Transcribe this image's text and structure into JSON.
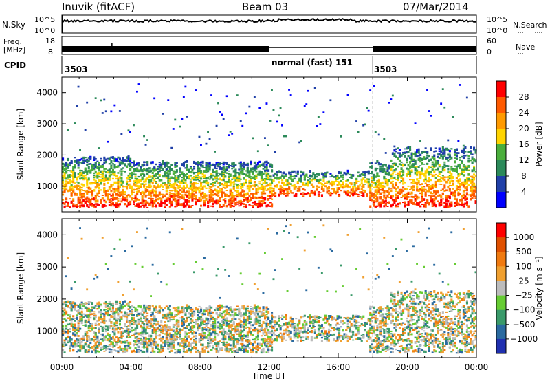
{
  "header": {
    "station": "Inuvik (fitACF)",
    "beam": "Beam 03",
    "date": "07/Mar/2014"
  },
  "left_labels": {
    "nsky": "N.Sky",
    "nsky_top": "10^5",
    "nsky_bottom": "10^0",
    "freq_line1": "Freq.",
    "freq_line2": "[MHz]",
    "freq_top": "18",
    "freq_bottom": "8",
    "cpid": "CPID"
  },
  "right_labels": {
    "nsearch": "N.Search",
    "nsearch_top": "10^5",
    "nsearch_bottom": "10^0",
    "nave": "Nave",
    "nave_top": "60",
    "nave_bottom": "0"
  },
  "cpid_segments": [
    {
      "start_hour": 0,
      "end_hour": 12,
      "label": "3503"
    },
    {
      "start_hour": 12,
      "end_hour": 18,
      "label": "normal (fast) 151"
    },
    {
      "start_hour": 18,
      "end_hour": 24,
      "label": "3503"
    }
  ],
  "colors": {
    "power_scale": [
      "#0000ff",
      "#2040a8",
      "#2c8a5a",
      "#4aae3c",
      "#ffd400",
      "#ff9a00",
      "#ff5a00",
      "#ff0000"
    ],
    "velocity_scale": [
      "#2030b0",
      "#2a6aa0",
      "#3a9a6a",
      "#66cc33",
      "#bcbcbc",
      "#f0a030",
      "#f07a10",
      "#e05000",
      "#ff0000"
    ]
  },
  "chart_data": [
    {
      "type": "heatmap",
      "name": "power",
      "xlabel": "",
      "ylabel": "Slant Range [km]",
      "x_range_hours": [
        0,
        24
      ],
      "ylim": [
        180,
        4500
      ],
      "yticks": [
        1000,
        2000,
        3000,
        4000
      ],
      "colorbar": {
        "label": "Power [dB]",
        "ticks": [
          "4",
          "8",
          "12",
          "16",
          "20",
          "24",
          "28"
        ],
        "range": [
          0,
          30
        ]
      }
    },
    {
      "type": "heatmap",
      "name": "velocity",
      "xlabel": "Time UT",
      "ylabel": "Slant Range [km]",
      "x_range_hours": [
        0,
        24
      ],
      "ylim": [
        180,
        4500
      ],
      "yticks": [
        1000,
        2000,
        3000,
        4000
      ],
      "xticks": [
        "00:00",
        "04:00",
        "08:00",
        "12:00",
        "16:00",
        "20:00",
        "00:00"
      ],
      "colorbar": {
        "label": "Velocity [m s⁻¹]",
        "ticks": [
          "1000",
          "500",
          "100",
          "25",
          "−25",
          "−100",
          "−500",
          "−1000"
        ],
        "range": [
          -1000,
          1000
        ]
      }
    }
  ],
  "xticks": [
    "00:00",
    "04:00",
    "08:00",
    "12:00",
    "16:00",
    "20:00",
    "00:00"
  ],
  "xlabel": "Time UT"
}
